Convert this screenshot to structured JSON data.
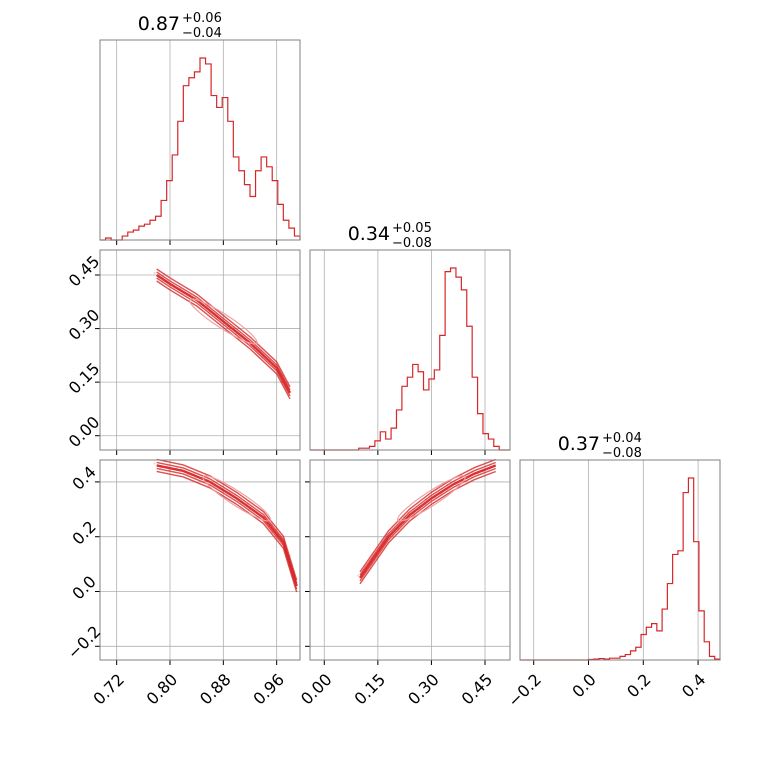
{
  "chart_data": {
    "type": "corner",
    "color": "#d62728",
    "grid": true,
    "parameters": [
      {
        "title": {
          "value": "0.87",
          "plus": "+0.06",
          "minus": "−0.04"
        },
        "range": [
          0.695,
          0.995
        ],
        "ticks": [
          0.72,
          0.8,
          0.88,
          0.96
        ],
        "tick_labels": [
          "0.72",
          "0.80",
          "0.88",
          "0.96"
        ],
        "histogram": [
          0,
          0.01,
          0,
          0,
          0.02,
          0.04,
          0.05,
          0.07,
          0.08,
          0.1,
          0.12,
          0.2,
          0.3,
          0.43,
          0.6,
          0.78,
          0.82,
          0.85,
          0.92,
          0.89,
          0.73,
          0.67,
          0.72,
          0.6,
          0.42,
          0.35,
          0.28,
          0.22,
          0.35,
          0.42,
          0.37,
          0.3,
          0.18,
          0.1,
          0.06,
          0.02
        ]
      },
      {
        "title": {
          "value": "0.34",
          "plus": "+0.05",
          "minus": "−0.08"
        },
        "range": [
          -0.04,
          0.52
        ],
        "ticks": [
          0.0,
          0.15,
          0.3,
          0.45
        ],
        "tick_labels": [
          "0.00",
          "0.15",
          "0.30",
          "0.45"
        ],
        "histogram": [
          0,
          0,
          0,
          0,
          0,
          0,
          0,
          0,
          0,
          0.01,
          0.01,
          0.02,
          0.05,
          0.1,
          0.06,
          0.12,
          0.22,
          0.35,
          0.4,
          0.47,
          0.43,
          0.33,
          0.39,
          0.44,
          0.63,
          0.98,
          1.0,
          0.95,
          0.88,
          0.68,
          0.4,
          0.2,
          0.09,
          0.06,
          0.02,
          0,
          0
        ]
      },
      {
        "title": {
          "value": "0.37",
          "plus": "+0.04",
          "minus": "−0.08"
        },
        "range": [
          -0.25,
          0.48
        ],
        "ticks": [
          -0.2,
          0.0,
          0.2,
          0.4
        ],
        "tick_labels": [
          "−0.2",
          "0.0",
          "0.2",
          "0.4"
        ],
        "histogram": [
          0,
          0,
          0,
          0,
          0,
          0,
          0,
          0,
          0,
          0,
          0,
          0,
          0,
          0.003,
          0.005,
          0.008,
          0.005,
          0.01,
          0.01,
          0.02,
          0.03,
          0.05,
          0.07,
          0.14,
          0.18,
          0.2,
          0.16,
          0.28,
          0.42,
          0.58,
          0.6,
          0.92,
          1.0,
          0.65,
          0.27,
          0.1,
          0.02,
          0.005
        ]
      }
    ],
    "pairs": [
      {
        "x": 0,
        "y": 1,
        "curve": [
          [
            0.78,
            0.45
          ],
          [
            0.8,
            0.425
          ],
          [
            0.84,
            0.38
          ],
          [
            0.88,
            0.32
          ],
          [
            0.92,
            0.26
          ],
          [
            0.96,
            0.19
          ],
          [
            0.98,
            0.12
          ]
        ]
      },
      {
        "x": 0,
        "y": 2,
        "curve": [
          [
            0.78,
            0.46
          ],
          [
            0.82,
            0.44
          ],
          [
            0.86,
            0.4
          ],
          [
            0.9,
            0.34
          ],
          [
            0.94,
            0.27
          ],
          [
            0.97,
            0.18
          ],
          [
            0.99,
            0.02
          ]
        ]
      },
      {
        "x": 1,
        "y": 2,
        "curve": [
          [
            0.1,
            0.05
          ],
          [
            0.18,
            0.2
          ],
          [
            0.24,
            0.28
          ],
          [
            0.3,
            0.34
          ],
          [
            0.36,
            0.39
          ],
          [
            0.42,
            0.43
          ],
          [
            0.48,
            0.46
          ]
        ]
      }
    ]
  }
}
